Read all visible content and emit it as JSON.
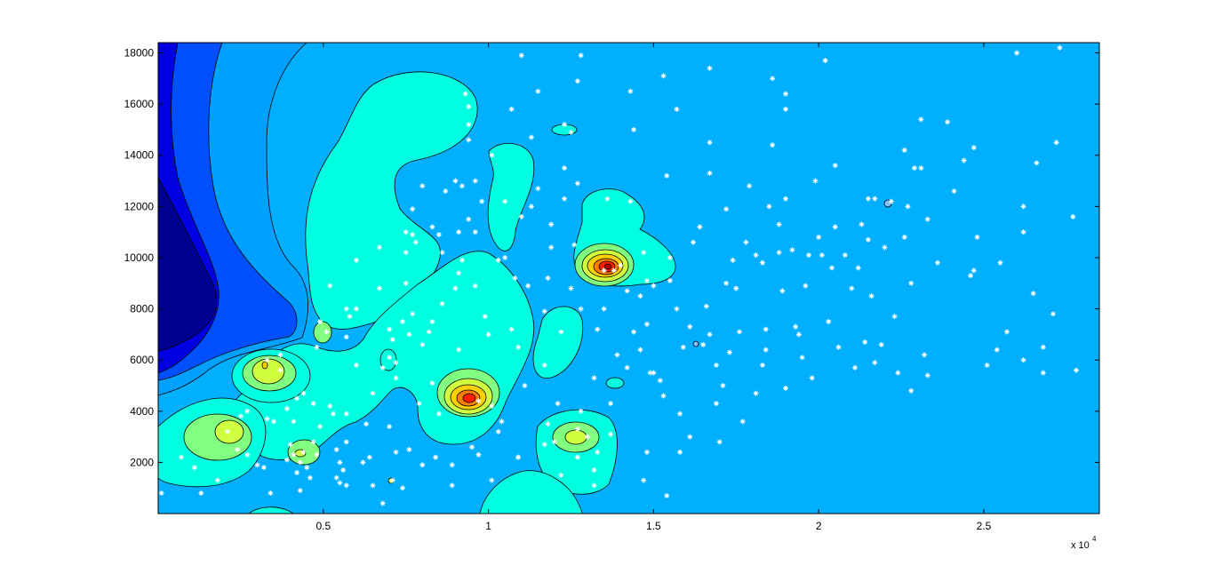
{
  "chart_data": {
    "type": "contour",
    "title": "",
    "xlabel": "",
    "ylabel": "",
    "x_multiplier_label": "x 10",
    "x_multiplier_exponent": "4",
    "xlim": [
      0,
      28500
    ],
    "ylim": [
      0,
      18400
    ],
    "x_ticks": [
      {
        "value": 5000,
        "label": "0.5"
      },
      {
        "value": 10000,
        "label": "1"
      },
      {
        "value": 15000,
        "label": "1.5"
      },
      {
        "value": 20000,
        "label": "2"
      },
      {
        "value": 25000,
        "label": "2.5"
      }
    ],
    "y_ticks": [
      {
        "value": 2000,
        "label": "2000"
      },
      {
        "value": 4000,
        "label": "4000"
      },
      {
        "value": 6000,
        "label": "6000"
      },
      {
        "value": 8000,
        "label": "8000"
      },
      {
        "value": 10000,
        "label": "10000"
      },
      {
        "value": 12000,
        "label": "12000"
      },
      {
        "value": 14000,
        "label": "14000"
      },
      {
        "value": 16000,
        "label": "16000"
      },
      {
        "value": 18000,
        "label": "18000"
      }
    ],
    "grid": false,
    "colormap": "jet",
    "colors": {
      "background_level": "#00b0ff",
      "low1": "#000090",
      "low2": "#0000e0",
      "low3": "#0050ff",
      "low4": "#00a0ff",
      "mid": "#00ffe0",
      "l1": "#80ff80",
      "l2": "#d0ff40",
      "l3": "#ffd000",
      "l4": "#ff8000",
      "l5": "#ff2000",
      "l6": "#c00000",
      "marker": "#ffffff"
    },
    "samples": [
      [
        100,
        800
      ],
      [
        700,
        2200
      ],
      [
        1100,
        1800
      ],
      [
        1300,
        800
      ],
      [
        1800,
        1300
      ],
      [
        2100,
        3200
      ],
      [
        2400,
        2500
      ],
      [
        2500,
        3800
      ],
      [
        2700,
        4000
      ],
      [
        2700,
        2300
      ],
      [
        3000,
        1900
      ],
      [
        3300,
        3700
      ],
      [
        3200,
        1800
      ],
      [
        3300,
        6000
      ],
      [
        3500,
        3600
      ],
      [
        3400,
        800
      ],
      [
        3700,
        5600
      ],
      [
        3900,
        4100
      ],
      [
        3700,
        6200
      ],
      [
        3900,
        2100
      ],
      [
        4000,
        2700
      ],
      [
        4200,
        1600
      ],
      [
        4300,
        2000
      ],
      [
        4200,
        4500
      ],
      [
        4100,
        3600
      ],
      [
        4100,
        2300
      ],
      [
        4400,
        2400
      ],
      [
        4300,
        900
      ],
      [
        4400,
        4700
      ],
      [
        4500,
        1800
      ],
      [
        4600,
        1400
      ],
      [
        4700,
        4300
      ],
      [
        4700,
        2800
      ],
      [
        4800,
        6500
      ],
      [
        4800,
        2300
      ],
      [
        4900,
        3400
      ],
      [
        4900,
        7500
      ],
      [
        5100,
        7100
      ],
      [
        5200,
        8900
      ],
      [
        5200,
        4200
      ],
      [
        5300,
        3900
      ],
      [
        5400,
        1400
      ],
      [
        5400,
        2500
      ],
      [
        5500,
        2000
      ],
      [
        5500,
        1200
      ],
      [
        5600,
        1700
      ],
      [
        5700,
        3900
      ],
      [
        5700,
        2800
      ],
      [
        5700,
        6900
      ],
      [
        5800,
        7700
      ],
      [
        5700,
        8000
      ],
      [
        5700,
        1100
      ],
      [
        6000,
        5800
      ],
      [
        6000,
        9900
      ],
      [
        6000,
        8000
      ],
      [
        6200,
        2000
      ],
      [
        6300,
        3500
      ],
      [
        6400,
        2200
      ],
      [
        6500,
        4700
      ],
      [
        6500,
        1100
      ],
      [
        6700,
        10400
      ],
      [
        6700,
        8800
      ],
      [
        6800,
        5700
      ],
      [
        6800,
        400
      ],
      [
        7000,
        6100
      ],
      [
        7000,
        3400
      ],
      [
        7000,
        7200
      ],
      [
        7100,
        6800
      ],
      [
        7200,
        5900
      ],
      [
        7200,
        2400
      ],
      [
        7100,
        1300
      ],
      [
        7200,
        5300
      ],
      [
        7400,
        7500
      ],
      [
        7500,
        9000
      ],
      [
        7400,
        1000
      ],
      [
        7500,
        10200
      ],
      [
        7500,
        11000
      ],
      [
        7600,
        2500
      ],
      [
        7700,
        10900
      ],
      [
        7600,
        7000
      ],
      [
        7700,
        11900
      ],
      [
        7700,
        7800
      ],
      [
        7800,
        10600
      ],
      [
        7900,
        4300
      ],
      [
        8000,
        12800
      ],
      [
        8000,
        6600
      ],
      [
        8000,
        1900
      ],
      [
        8300,
        11200
      ],
      [
        8200,
        7100
      ],
      [
        8300,
        5100
      ],
      [
        8300,
        7500
      ],
      [
        8400,
        2200
      ],
      [
        8500,
        3900
      ],
      [
        8500,
        10900
      ],
      [
        8600,
        10200
      ],
      [
        8600,
        8200
      ],
      [
        8700,
        12600
      ],
      [
        8900,
        1100
      ],
      [
        8900,
        1900
      ],
      [
        9000,
        8800
      ],
      [
        9000,
        13000
      ],
      [
        9100,
        11000
      ],
      [
        9100,
        6400
      ],
      [
        9100,
        9400
      ],
      [
        9200,
        12800
      ],
      [
        9200,
        9900
      ],
      [
        9300,
        16400
      ],
      [
        9400,
        14600
      ],
      [
        9400,
        15200
      ],
      [
        9400,
        15900
      ],
      [
        9500,
        2600
      ],
      [
        9400,
        11500
      ],
      [
        9600,
        13000
      ],
      [
        9600,
        11000
      ],
      [
        9600,
        8900
      ],
      [
        9700,
        4400
      ],
      [
        9700,
        2300
      ],
      [
        9800,
        12200
      ],
      [
        9900,
        7700
      ],
      [
        10000,
        7000
      ],
      [
        10100,
        4200
      ],
      [
        10100,
        1300
      ],
      [
        10100,
        14000
      ],
      [
        10300,
        9900
      ],
      [
        10300,
        3200
      ],
      [
        10400,
        3600
      ],
      [
        10500,
        10000
      ],
      [
        10500,
        12200
      ],
      [
        10700,
        7200
      ],
      [
        10700,
        15800
      ],
      [
        10800,
        9200
      ],
      [
        10900,
        2200
      ],
      [
        10900,
        2200
      ],
      [
        10900,
        6500
      ],
      [
        11000,
        17900
      ],
      [
        11000,
        11600
      ],
      [
        11100,
        5000
      ],
      [
        11200,
        8900
      ],
      [
        11300,
        14700
      ],
      [
        11300,
        12000
      ],
      [
        11500,
        16500
      ],
      [
        11500,
        12700
      ],
      [
        11700,
        7900
      ],
      [
        11700,
        2700
      ],
      [
        11700,
        5800
      ],
      [
        11800,
        3500
      ],
      [
        11800,
        9200
      ],
      [
        11900,
        10400
      ],
      [
        11900,
        11300
      ],
      [
        12000,
        2800
      ],
      [
        12100,
        4300
      ],
      [
        12200,
        1500
      ],
      [
        12200,
        7100
      ],
      [
        12300,
        13500
      ],
      [
        12300,
        15200
      ],
      [
        12300,
        12300
      ],
      [
        12500,
        14900
      ],
      [
        12500,
        8800
      ],
      [
        12600,
        10500
      ],
      [
        12700,
        16900
      ],
      [
        12700,
        3300
      ],
      [
        12700,
        12900
      ],
      [
        12700,
        2200
      ],
      [
        12800,
        17900
      ],
      [
        12800,
        8000
      ],
      [
        12800,
        4000
      ],
      [
        13000,
        3000
      ],
      [
        13200,
        1700
      ],
      [
        13200,
        1100
      ],
      [
        13200,
        5300
      ],
      [
        13300,
        7200
      ],
      [
        13300,
        2400
      ],
      [
        13500,
        9500
      ],
      [
        13500,
        8000
      ],
      [
        13600,
        12300
      ],
      [
        13700,
        4300
      ],
      [
        13700,
        3100
      ],
      [
        13800,
        9500
      ],
      [
        13900,
        6200
      ],
      [
        14000,
        9700
      ],
      [
        14200,
        5700
      ],
      [
        14200,
        8700
      ],
      [
        14300,
        16500
      ],
      [
        14300,
        12200
      ],
      [
        14400,
        15000
      ],
      [
        14400,
        7100
      ],
      [
        14600,
        6400
      ],
      [
        14600,
        8500
      ],
      [
        14700,
        1300
      ],
      [
        14700,
        10200
      ],
      [
        14800,
        2400
      ],
      [
        14800,
        7400
      ],
      [
        14800,
        9100
      ],
      [
        14900,
        5500
      ],
      [
        15000,
        8900
      ],
      [
        15000,
        5500
      ],
      [
        15200,
        5200
      ],
      [
        15300,
        4600
      ],
      [
        15300,
        17100
      ],
      [
        15400,
        700
      ],
      [
        15400,
        13200
      ],
      [
        15500,
        9100
      ],
      [
        15500,
        10000
      ],
      [
        15700,
        15800
      ],
      [
        15700,
        8000
      ],
      [
        15800,
        2400
      ],
      [
        15800,
        3900
      ],
      [
        15900,
        6500
      ],
      [
        16100,
        3000
      ],
      [
        16100,
        7300
      ],
      [
        16200,
        10600
      ],
      [
        16400,
        11200
      ],
      [
        16500,
        6600
      ],
      [
        16600,
        8100
      ],
      [
        16700,
        13300
      ],
      [
        16700,
        7000
      ],
      [
        16700,
        17400
      ],
      [
        16700,
        14500
      ],
      [
        16900,
        5800
      ],
      [
        16900,
        4300
      ],
      [
        17000,
        2800
      ],
      [
        17100,
        5000
      ],
      [
        17200,
        9000
      ],
      [
        17200,
        11900
      ],
      [
        17300,
        6300
      ],
      [
        17400,
        9900
      ],
      [
        17500,
        8800
      ],
      [
        17600,
        7100
      ],
      [
        17700,
        3600
      ],
      [
        17800,
        10600
      ],
      [
        17900,
        12800
      ],
      [
        18100,
        4700
      ],
      [
        18100,
        10100
      ],
      [
        18300,
        5800
      ],
      [
        18300,
        9800
      ],
      [
        18400,
        7200
      ],
      [
        18400,
        6400
      ],
      [
        18500,
        12000
      ],
      [
        18600,
        14400
      ],
      [
        18600,
        17000
      ],
      [
        18800,
        11300
      ],
      [
        18800,
        10200
      ],
      [
        18900,
        8700
      ],
      [
        19000,
        12300
      ],
      [
        19000,
        4900
      ],
      [
        19000,
        15800
      ],
      [
        19000,
        16400
      ],
      [
        19200,
        10300
      ],
      [
        19300,
        7300
      ],
      [
        19400,
        7000
      ],
      [
        19500,
        6100
      ],
      [
        19600,
        8900
      ],
      [
        19700,
        10100
      ],
      [
        19800,
        5300
      ],
      [
        19900,
        13000
      ],
      [
        20000,
        10800
      ],
      [
        20100,
        10100
      ],
      [
        20200,
        17700
      ],
      [
        20300,
        7500
      ],
      [
        20400,
        9600
      ],
      [
        20500,
        11200
      ],
      [
        20500,
        13600
      ],
      [
        20600,
        6500
      ],
      [
        20800,
        10100
      ],
      [
        21000,
        8800
      ],
      [
        21100,
        5700
      ],
      [
        21200,
        9600
      ],
      [
        21300,
        11300
      ],
      [
        21400,
        6700
      ],
      [
        21500,
        10700
      ],
      [
        21500,
        12300
      ],
      [
        21600,
        8500
      ],
      [
        21700,
        5900
      ],
      [
        21700,
        12300
      ],
      [
        21900,
        6600
      ],
      [
        22000,
        10400
      ],
      [
        22200,
        12200
      ],
      [
        22300,
        7700
      ],
      [
        22400,
        5500
      ],
      [
        22600,
        10800
      ],
      [
        22600,
        14200
      ],
      [
        22700,
        12000
      ],
      [
        22800,
        4800
      ],
      [
        22800,
        9000
      ],
      [
        22900,
        13500
      ],
      [
        23100,
        13500
      ],
      [
        23100,
        15400
      ],
      [
        23200,
        6200
      ],
      [
        23300,
        11500
      ],
      [
        23300,
        5400
      ],
      [
        23600,
        9800
      ],
      [
        23900,
        15300
      ],
      [
        24100,
        12600
      ],
      [
        24400,
        13800
      ],
      [
        24600,
        9300
      ],
      [
        24700,
        9500
      ],
      [
        24700,
        14300
      ],
      [
        24800,
        10800
      ],
      [
        25100,
        5800
      ],
      [
        25400,
        6400
      ],
      [
        25500,
        9800
      ],
      [
        25700,
        7100
      ],
      [
        26000,
        18000
      ],
      [
        26200,
        11000
      ],
      [
        26200,
        12000
      ],
      [
        26200,
        6000
      ],
      [
        26500,
        8600
      ],
      [
        26600,
        13700
      ],
      [
        26800,
        6500
      ],
      [
        26800,
        5500
      ],
      [
        27100,
        7800
      ],
      [
        27200,
        14500
      ],
      [
        27300,
        18200
      ],
      [
        27700,
        11600
      ],
      [
        27800,
        5600
      ]
    ]
  }
}
